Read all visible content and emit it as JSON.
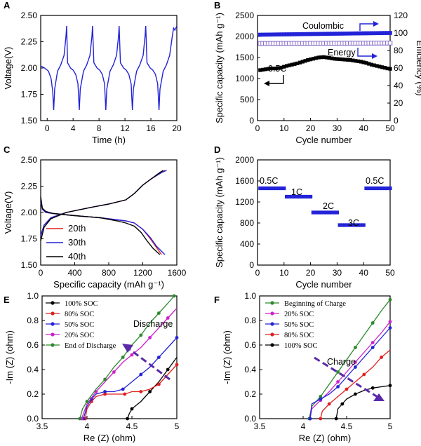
{
  "chart_data": [
    {
      "id": "A",
      "type": "line",
      "panel_label": "A",
      "xlabel": "Time (h)",
      "ylabel": "Voltage(V)",
      "xlim": [
        -1,
        20
      ],
      "ylim": [
        1.5,
        2.5
      ],
      "xticks": [
        0,
        4,
        8,
        12,
        16,
        20
      ],
      "yticks": [
        1.5,
        1.75,
        2.0,
        2.25,
        2.5
      ],
      "ytick_labels": [
        "1.50",
        "1.75",
        "2.00",
        "2.25",
        "2.50"
      ],
      "series": [
        {
          "color": "#2323d8",
          "x": [
            -1.0,
            -0.4,
            0.2,
            0.6,
            0.85,
            1.0,
            1.15,
            1.6,
            2.1,
            2.6,
            2.9,
            3.0,
            3.15,
            3.6,
            4.0,
            4.4,
            4.75,
            4.95,
            5.1,
            5.6,
            6.1,
            6.6,
            6.9,
            7.0,
            7.2,
            7.7,
            8.1,
            8.5,
            8.85,
            9.05,
            9.2,
            9.7,
            10.2,
            10.7,
            11.0,
            11.1,
            11.3,
            11.8,
            12.2,
            12.6,
            12.95,
            13.15,
            13.3,
            13.8,
            14.3,
            14.8,
            15.1,
            15.2,
            15.4,
            15.9,
            16.3,
            16.7,
            17.05,
            17.25,
            17.4,
            17.9,
            18.4,
            18.9,
            19.3,
            19.5,
            19.7,
            20.0
          ],
          "y": [
            2.02,
            2.0,
            1.97,
            1.9,
            1.78,
            1.6,
            1.8,
            1.97,
            2.03,
            2.12,
            2.3,
            2.4,
            2.05,
            2.0,
            1.98,
            1.94,
            1.85,
            1.6,
            1.8,
            1.97,
            2.03,
            2.12,
            2.3,
            2.4,
            2.05,
            2.0,
            1.98,
            1.94,
            1.85,
            1.6,
            1.8,
            1.97,
            2.03,
            2.12,
            2.3,
            2.4,
            2.05,
            2.0,
            1.98,
            1.94,
            1.85,
            1.6,
            1.8,
            1.97,
            2.03,
            2.12,
            2.3,
            2.4,
            2.05,
            2.0,
            1.98,
            1.94,
            1.85,
            1.6,
            1.8,
            1.97,
            2.03,
            2.12,
            2.3,
            2.38,
            2.36,
            2.4
          ]
        }
      ]
    },
    {
      "id": "B",
      "type": "scatter",
      "panel_label": "B",
      "xlabel": "Cycle number",
      "ylabel": "Specific capacity (mAh g⁻¹)",
      "ylabel2": "Efficiency (%)",
      "xlim": [
        0,
        50
      ],
      "ylim": [
        0,
        2500
      ],
      "y2lim": [
        0,
        120
      ],
      "xticks": [
        0,
        10,
        20,
        30,
        40,
        50
      ],
      "yticks": [
        0,
        500,
        1000,
        1500,
        2000,
        2500
      ],
      "y2ticks": [
        0,
        20,
        40,
        60,
        80,
        100,
        120
      ],
      "annotations": [
        "Coulombic",
        "Energy",
        "0.5C"
      ],
      "series": [
        {
          "axis": "right",
          "marker": "square",
          "color": "#2323d8",
          "x": [
            1,
            50
          ],
          "y_start": 98,
          "y_end": 100
        },
        {
          "axis": "right",
          "marker": "open-square",
          "color": "#8a6fc8",
          "x": [
            1,
            50
          ],
          "y_start": 88,
          "y_end": 88.5
        },
        {
          "axis": "left",
          "marker": "square",
          "color": "#000000",
          "x": [
            1,
            3,
            5,
            7,
            9,
            11,
            13,
            15,
            17,
            19,
            21,
            23,
            25,
            27,
            29,
            31,
            33,
            35,
            37,
            39,
            41,
            43,
            45,
            47,
            49,
            50
          ],
          "y": [
            1200,
            1220,
            1240,
            1240,
            1260,
            1300,
            1330,
            1360,
            1400,
            1440,
            1470,
            1500,
            1510,
            1490,
            1470,
            1460,
            1450,
            1440,
            1420,
            1400,
            1370,
            1330,
            1300,
            1270,
            1240,
            1230
          ]
        }
      ]
    },
    {
      "id": "C",
      "type": "line",
      "panel_label": "C",
      "xlabel": "Specific capacity (mAh g⁻¹)",
      "ylabel": "Voltage(V)",
      "xlim": [
        0,
        1600
      ],
      "ylim": [
        1.5,
        2.5
      ],
      "xticks": [
        0,
        400,
        800,
        1200,
        1600
      ],
      "yticks": [
        1.5,
        1.75,
        2.0,
        2.25,
        2.5
      ],
      "ytick_labels": [
        "1.50",
        "1.75",
        "2.00",
        "2.25",
        "2.50"
      ],
      "legend": [
        "20th",
        "30th",
        "40th"
      ],
      "series": [
        {
          "name": "20th",
          "color": "#e02020",
          "discharge_x": [
            0,
            20,
            60,
            150,
            400,
            700,
            900,
            1000,
            1100,
            1200,
            1280,
            1350,
            1420
          ],
          "discharge_y": [
            2.1,
            2.03,
            2.0,
            1.99,
            1.97,
            1.95,
            1.93,
            1.92,
            1.9,
            1.84,
            1.76,
            1.68,
            1.6
          ],
          "charge_x": [
            0,
            40,
            120,
            300,
            600,
            800,
            1000,
            1100,
            1200,
            1300,
            1400,
            1460
          ],
          "charge_y": [
            1.78,
            1.88,
            1.95,
            2.0,
            2.05,
            2.08,
            2.12,
            2.18,
            2.26,
            2.32,
            2.37,
            2.4
          ]
        },
        {
          "name": "30th",
          "color": "#2323d8",
          "discharge_x": [
            0,
            20,
            60,
            150,
            400,
            700,
            900,
            1000,
            1100,
            1200,
            1290,
            1360,
            1460
          ],
          "discharge_y": [
            2.1,
            2.03,
            2.0,
            1.99,
            1.97,
            1.95,
            1.93,
            1.92,
            1.9,
            1.84,
            1.76,
            1.68,
            1.6
          ],
          "charge_x": [
            0,
            40,
            120,
            300,
            600,
            800,
            1000,
            1100,
            1200,
            1300,
            1420,
            1480
          ],
          "charge_y": [
            1.78,
            1.88,
            1.95,
            2.0,
            2.05,
            2.08,
            2.12,
            2.18,
            2.26,
            2.32,
            2.38,
            2.4
          ]
        },
        {
          "name": "40th",
          "color": "#000000",
          "discharge_x": [
            0,
            20,
            60,
            150,
            400,
            700,
            900,
            1000,
            1100,
            1180,
            1250,
            1320,
            1400
          ],
          "discharge_y": [
            2.15,
            2.04,
            2.01,
            1.99,
            1.97,
            1.95,
            1.92,
            1.9,
            1.87,
            1.81,
            1.73,
            1.66,
            1.6
          ],
          "charge_x": [
            0,
            40,
            120,
            300,
            600,
            800,
            1000,
            1100,
            1200,
            1300,
            1400,
            1440
          ],
          "charge_y": [
            1.73,
            1.86,
            1.94,
            2.0,
            2.05,
            2.08,
            2.12,
            2.18,
            2.26,
            2.32,
            2.38,
            2.4
          ]
        }
      ]
    },
    {
      "id": "D",
      "type": "scatter",
      "panel_label": "D",
      "xlabel": "Cycle number",
      "ylabel": "Specific capacity (mAh g⁻¹)",
      "xlim": [
        0,
        50
      ],
      "ylim": [
        0,
        2000
      ],
      "xticks": [
        0,
        10,
        20,
        30,
        40,
        50
      ],
      "yticks": [
        0,
        400,
        800,
        1200,
        1600,
        2000
      ],
      "marker": "square",
      "color": "#2323d8",
      "groups": [
        {
          "label": "0.5C",
          "x": [
            1,
            10
          ],
          "y": 1460
        },
        {
          "label": "1C",
          "x": [
            11,
            20
          ],
          "y": 1300
        },
        {
          "label": "2C",
          "x": [
            21,
            30
          ],
          "y": 1000
        },
        {
          "label": "3C",
          "x": [
            31,
            40
          ],
          "y": 760
        },
        {
          "label": "0.5C",
          "x": [
            41,
            50
          ],
          "y": 1460
        }
      ]
    },
    {
      "id": "E",
      "type": "line",
      "panel_label": "E",
      "xlabel": "Re (Z) (ohm)",
      "ylabel": "-Im (Z) (ohm)",
      "xlim": [
        3.5,
        5.0
      ],
      "ylim": [
        0,
        1.0
      ],
      "xticks": [
        3.5,
        4.0,
        4.5,
        5.0
      ],
      "yticks": [
        0.0,
        0.2,
        0.4,
        0.6,
        0.8,
        1.0
      ],
      "annotation": "Discharge",
      "legend": [
        "100% SOC",
        "80% SOC",
        "50% SOC",
        "20% SOC",
        "End of Discharge"
      ],
      "series": [
        {
          "name": "100% SOC",
          "color": "#000000",
          "x": [
            4.45,
            4.47,
            4.5,
            4.6,
            4.7,
            4.8,
            4.9,
            5.0
          ],
          "y": [
            0.0,
            0.04,
            0.08,
            0.14,
            0.22,
            0.3,
            0.4,
            0.5
          ]
        },
        {
          "name": "80% SOC",
          "color": "#e02020",
          "x": [
            3.98,
            4.0,
            4.05,
            4.1,
            4.2,
            4.3,
            4.42,
            4.5,
            4.6,
            4.7,
            4.8,
            4.9,
            5.0
          ],
          "y": [
            0.0,
            0.08,
            0.14,
            0.18,
            0.2,
            0.2,
            0.2,
            0.22,
            0.22,
            0.24,
            0.28,
            0.36,
            0.44
          ]
        },
        {
          "name": "50% SOC",
          "color": "#2323d8",
          "x": [
            3.96,
            4.0,
            4.05,
            4.1,
            4.2,
            4.3,
            4.4,
            4.5,
            4.6,
            4.7,
            4.8,
            4.9,
            5.0
          ],
          "y": [
            0.0,
            0.1,
            0.16,
            0.2,
            0.22,
            0.22,
            0.24,
            0.3,
            0.36,
            0.42,
            0.5,
            0.58,
            0.66
          ]
        },
        {
          "name": "20% SOC",
          "color": "#cc22cc",
          "x": [
            3.94,
            4.0,
            4.1,
            4.2,
            4.3,
            4.4,
            4.5,
            4.6,
            4.7,
            4.8,
            4.9,
            5.0
          ],
          "y": [
            0.0,
            0.12,
            0.22,
            0.3,
            0.38,
            0.46,
            0.52,
            0.58,
            0.66,
            0.74,
            0.82,
            0.9
          ]
        },
        {
          "name": "End of Discharge",
          "color": "#2a8a2a",
          "x": [
            3.92,
            3.95,
            4.0,
            4.1,
            4.2,
            4.3,
            4.4,
            4.5,
            4.6,
            4.7,
            4.8,
            4.9,
            4.97
          ],
          "y": [
            0.0,
            0.08,
            0.14,
            0.24,
            0.32,
            0.42,
            0.5,
            0.6,
            0.68,
            0.78,
            0.86,
            0.94,
            1.0
          ]
        }
      ]
    },
    {
      "id": "F",
      "type": "line",
      "panel_label": "F",
      "xlabel": "Re (Z) (ohm)",
      "ylabel": "-Im (Z) (ohm)",
      "xlim": [
        3.5,
        5.0
      ],
      "ylim": [
        0,
        1.0
      ],
      "xticks": [
        3.5,
        4.0,
        4.5,
        5.0
      ],
      "yticks": [
        0.0,
        0.2,
        0.4,
        0.6,
        0.8,
        1.0
      ],
      "annotation": "Charge",
      "legend": [
        "Beginning of Charge",
        "20% SOC",
        "50% SOC",
        "80% SOC",
        "100% SOC"
      ],
      "series": [
        {
          "name": "Beginning of Charge",
          "color": "#2a8a2a",
          "x": [
            4.07,
            4.1,
            4.2,
            4.3,
            4.4,
            4.5,
            4.6,
            4.7,
            4.8,
            4.9,
            5.0
          ],
          "y": [
            0.0,
            0.1,
            0.18,
            0.28,
            0.38,
            0.48,
            0.58,
            0.68,
            0.78,
            0.88,
            0.97
          ]
        },
        {
          "name": "20% SOC",
          "color": "#cc22cc",
          "x": [
            4.08,
            4.1,
            4.2,
            4.3,
            4.4,
            4.5,
            4.6,
            4.7,
            4.8,
            4.9,
            5.0
          ],
          "y": [
            0.0,
            0.08,
            0.15,
            0.22,
            0.3,
            0.38,
            0.46,
            0.54,
            0.62,
            0.7,
            0.79
          ]
        },
        {
          "name": "50% SOC",
          "color": "#2323d8",
          "x": [
            4.08,
            4.1,
            4.2,
            4.3,
            4.4,
            4.5,
            4.6,
            4.7,
            4.8,
            4.9,
            5.0
          ],
          "y": [
            0.0,
            0.12,
            0.16,
            0.2,
            0.26,
            0.34,
            0.42,
            0.5,
            0.58,
            0.66,
            0.74
          ]
        },
        {
          "name": "80% SOC",
          "color": "#e02020",
          "x": [
            4.2,
            4.22,
            4.3,
            4.4,
            4.5,
            4.6,
            4.7,
            4.8,
            4.9,
            5.0
          ],
          "y": [
            0.0,
            0.06,
            0.12,
            0.18,
            0.24,
            0.3,
            0.36,
            0.42,
            0.5,
            0.56
          ]
        },
        {
          "name": "100% SOC",
          "color": "#000000",
          "x": [
            4.38,
            4.4,
            4.45,
            4.5,
            4.6,
            4.7,
            4.8,
            4.9,
            5.0
          ],
          "y": [
            0.0,
            0.08,
            0.12,
            0.16,
            0.2,
            0.23,
            0.25,
            0.26,
            0.27
          ]
        }
      ]
    }
  ]
}
